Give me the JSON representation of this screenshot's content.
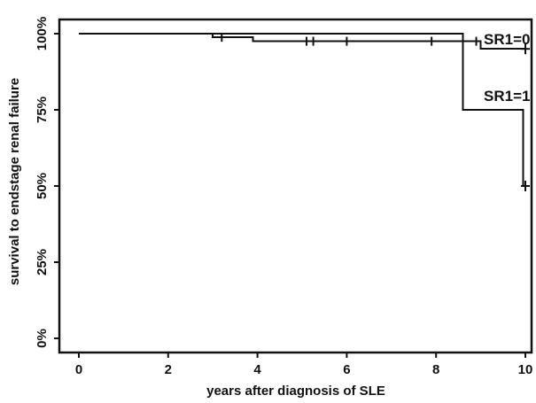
{
  "chart_data": {
    "type": "line",
    "xlabel": "years after diagnosis of SLE",
    "ylabel": "survival to endstage renal failure",
    "xlim": [
      0,
      10
    ],
    "ylim": [
      0,
      1
    ],
    "x_ticks": [
      0,
      2,
      4,
      6,
      8,
      10
    ],
    "x_tick_labels": [
      "0",
      "2",
      "4",
      "6",
      "8",
      "10"
    ],
    "y_ticks": [
      0,
      0.25,
      0.5,
      0.75,
      1
    ],
    "y_tick_labels": [
      "0%",
      "25%",
      "50%",
      "75%",
      "100%"
    ],
    "grid": false,
    "series": [
      {
        "name": "SR1=0",
        "steps": [
          [
            0,
            1.0
          ],
          [
            3.0,
            0.988
          ],
          [
            3.9,
            0.975
          ],
          [
            9.0,
            0.95
          ],
          [
            10.0,
            0.95
          ]
        ],
        "censored": [
          [
            3.2,
            0.988
          ],
          [
            5.1,
            0.975
          ],
          [
            5.25,
            0.975
          ],
          [
            6.0,
            0.975
          ],
          [
            7.9,
            0.975
          ],
          [
            8.9,
            0.975
          ],
          [
            10.0,
            0.95
          ]
        ]
      },
      {
        "name": "SR1=1",
        "steps": [
          [
            0,
            1.0
          ],
          [
            8.6,
            0.75
          ],
          [
            9.95,
            0.5
          ],
          [
            10.0,
            0.5
          ]
        ],
        "censored": [
          [
            10.0,
            0.5
          ]
        ]
      }
    ]
  }
}
